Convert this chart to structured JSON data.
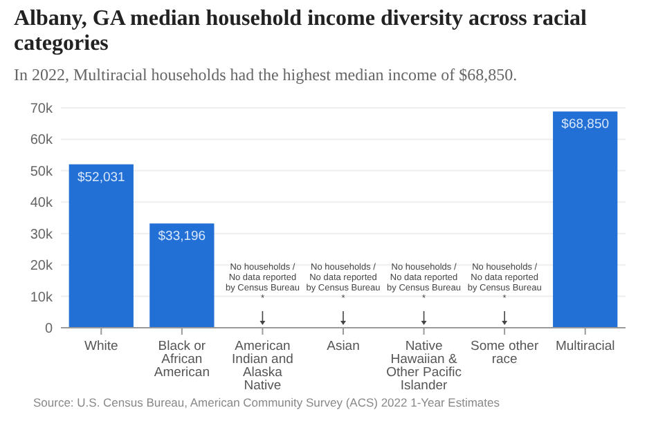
{
  "chart_data": {
    "type": "bar",
    "title": "Albany, GA median household income diversity across racial categories",
    "subtitle": "In 2022, Multiracial households had the highest median income of $68,850.",
    "categories": [
      "White",
      "Black or African American",
      "American Indian and Alaska Native",
      "Asian",
      "Native Hawaiian & Other Pacific Islander",
      "Some other race",
      "Multiracial"
    ],
    "values": [
      52031,
      33196,
      null,
      null,
      null,
      null,
      68850
    ],
    "value_labels": [
      "$52,031",
      "$33,196",
      null,
      null,
      null,
      null,
      "$68,850"
    ],
    "color": "#2270d6",
    "ylim": [
      0,
      70000
    ],
    "yticks": [
      0,
      {
        "value": 10000,
        "label": "10k"
      },
      {
        "value": 20000,
        "label": "20k"
      },
      {
        "value": 30000,
        "label": "30k"
      },
      {
        "value": 40000,
        "label": "40k"
      },
      {
        "value": 50000,
        "label": "50k"
      },
      {
        "value": 60000,
        "label": "60k"
      },
      {
        "value": 70000,
        "label": "70k"
      }
    ],
    "grid": "y",
    "annotations": [
      "No households / No data reported by Census Bureau *",
      "No households / No data reported by Census Bureau *",
      "No households / No data reported by Census Bureau *",
      "No households / No data reported by Census Bureau *",
      "Source: U.S. Census Bureau, American Community Survey (ACS) 2022 1-Year Estimates"
    ]
  }
}
